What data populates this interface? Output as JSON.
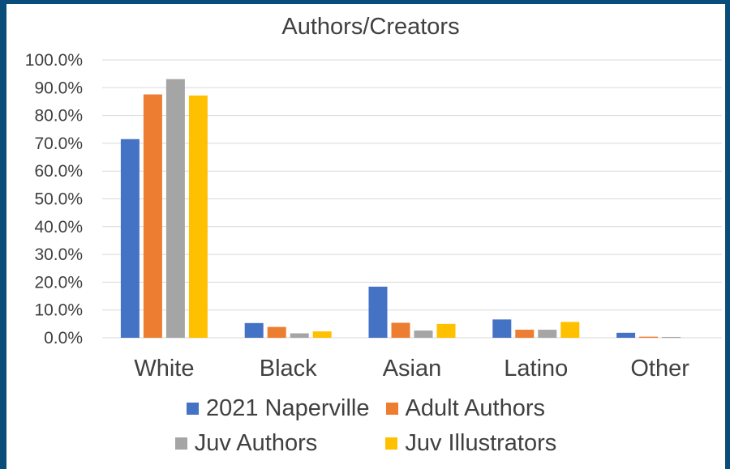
{
  "colors": {
    "frame": "#0b4d7a",
    "grid": "#d9d9d9",
    "text": "#404040"
  },
  "chart_data": {
    "type": "bar",
    "title": "Authors/Creators",
    "xlabel": "",
    "ylabel": "",
    "categories": [
      "White",
      "Black",
      "Asian",
      "Latino",
      "Other"
    ],
    "ylim": [
      0,
      100
    ],
    "yticks": [
      "0.0%",
      "10.0%",
      "20.0%",
      "30.0%",
      "40.0%",
      "50.0%",
      "60.0%",
      "70.0%",
      "80.0%",
      "90.0%",
      "100.0%"
    ],
    "grid": true,
    "legend_position": "bottom",
    "series": [
      {
        "name": "2021 Naperville",
        "color": "#4472c4",
        "values": [
          71.5,
          5.3,
          18.4,
          6.6,
          1.8
        ]
      },
      {
        "name": "Adult Authors",
        "color": "#ed7d31",
        "values": [
          87.6,
          3.9,
          5.4,
          2.9,
          0.4
        ]
      },
      {
        "name": "Juv Authors",
        "color": "#a5a5a5",
        "values": [
          93.1,
          1.6,
          2.6,
          2.9,
          0.3
        ]
      },
      {
        "name": "Juv Illustrators",
        "color": "#ffc000",
        "values": [
          87.2,
          2.3,
          5.0,
          5.7,
          0.0
        ]
      }
    ]
  }
}
